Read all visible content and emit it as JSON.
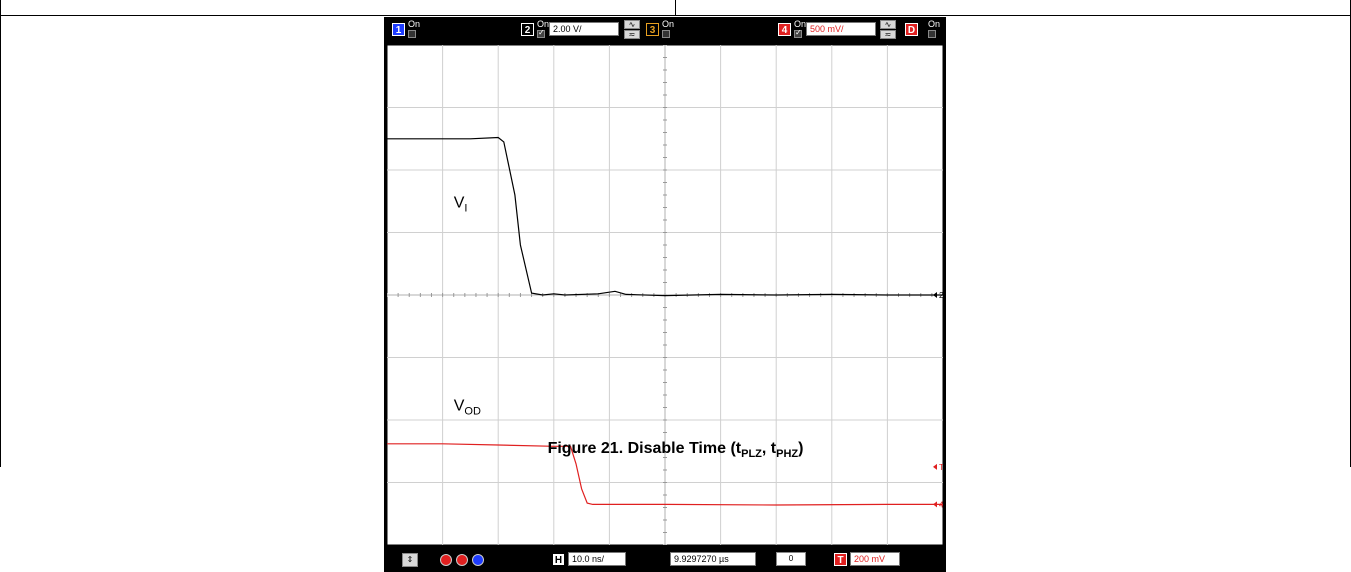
{
  "scope": {
    "channels": [
      {
        "num": "1",
        "state": "On",
        "color": "#1e3cff",
        "enabled": false,
        "scale": ""
      },
      {
        "num": "2",
        "state": "On",
        "color": "#000000",
        "enabled": true,
        "scale": "2.00 V/"
      },
      {
        "num": "3",
        "state": "On",
        "color": "#e8a020",
        "enabled": false,
        "scale": ""
      },
      {
        "num": "4",
        "state": "On",
        "color": "#e02020",
        "enabled": true,
        "scale": "500 mV/"
      },
      {
        "num": "D",
        "state": "On",
        "color": "#e02020",
        "enabled": false,
        "scale": ""
      }
    ],
    "horizontal": {
      "label": "H",
      "scale": "10.0 ns/",
      "position": "9.9297270 µs",
      "counter": "0"
    },
    "trigger": {
      "label": "T",
      "level": "200 mV"
    },
    "markers": {
      "ch2": "2",
      "trig": "T",
      "ch4": "4"
    }
  },
  "chart_data": {
    "type": "line",
    "x_unit": "ns",
    "xlim": [
      -50,
      50
    ],
    "ylim_divisions": [
      -4,
      4
    ],
    "grid": true,
    "annotations": [
      {
        "text": "V",
        "sub": "I"
      },
      {
        "text": "V",
        "sub": "OD"
      }
    ],
    "series": [
      {
        "name": "V",
        "color": "#000000",
        "scale": "2.00 V/",
        "x": [
          -50,
          -35,
          -30,
          -29,
          -27,
          -26,
          -24,
          -22,
          -20,
          -18,
          -12,
          -9,
          -7,
          0,
          10,
          20,
          30,
          40,
          50
        ],
        "y": [
          2.5,
          2.5,
          2.52,
          2.45,
          1.6,
          0.8,
          0.03,
          0.0,
          0.02,
          0.0,
          0.02,
          0.06,
          0.01,
          -0.01,
          0.01,
          0.0,
          0.01,
          0.0,
          0.0
        ]
      },
      {
        "name": "V",
        "color": "#e02020",
        "scale": "500 mV/",
        "x": [
          -50,
          -40,
          -30,
          -20,
          -17,
          -16,
          -15,
          -14,
          -13,
          0,
          20,
          40,
          50
        ],
        "y": [
          -2.38,
          -2.38,
          -2.4,
          -2.42,
          -2.42,
          -2.7,
          -3.1,
          -3.33,
          -3.35,
          -3.35,
          -3.36,
          -3.35,
          -3.35
        ]
      }
    ]
  },
  "caption": {
    "prefix": "Figure 21. Disable Time (t",
    "sub1": "PLZ",
    "sep": ", t",
    "sub2": "PHZ",
    "suffix": ")"
  }
}
